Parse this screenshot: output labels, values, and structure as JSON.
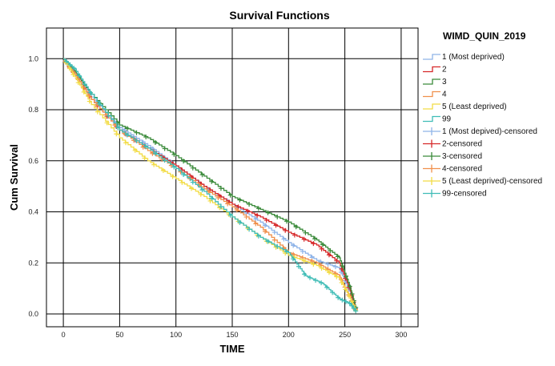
{
  "chart_data": {
    "type": "line",
    "title": "Survival Functions",
    "xlabel": "TIME",
    "ylabel": "Cum Survival",
    "xlim": [
      -15,
      315
    ],
    "ylim": [
      -0.05,
      1.12
    ],
    "x_ticks": [
      0,
      50,
      100,
      150,
      200,
      250,
      300
    ],
    "x_tick_labels": [
      "0",
      "50",
      "100",
      "150",
      "200",
      "250",
      "300"
    ],
    "y_ticks": [
      0.0,
      0.2,
      0.4,
      0.6,
      0.8,
      1.0
    ],
    "y_tick_labels": [
      "0.0",
      "0.2",
      "0.4",
      "0.6",
      "0.8",
      "1.0"
    ],
    "grid": true,
    "legend_title": "WIMD_QUIN_2019",
    "legend_position": "right",
    "series": [
      {
        "name": "1 (Most deprived)",
        "color": "#8fb4e8",
        "x": [
          0,
          10,
          25,
          50,
          75,
          100,
          125,
          150,
          175,
          200,
          225,
          245,
          255,
          260
        ],
        "y": [
          1.0,
          0.95,
          0.85,
          0.73,
          0.66,
          0.58,
          0.5,
          0.43,
          0.36,
          0.28,
          0.21,
          0.18,
          0.08,
          0.01
        ]
      },
      {
        "name": "2",
        "color": "#d62728",
        "x": [
          0,
          10,
          25,
          50,
          75,
          100,
          125,
          150,
          175,
          200,
          225,
          245,
          255,
          260
        ],
        "y": [
          1.0,
          0.94,
          0.84,
          0.72,
          0.65,
          0.58,
          0.5,
          0.43,
          0.38,
          0.32,
          0.27,
          0.2,
          0.09,
          0.01
        ]
      },
      {
        "name": "3",
        "color": "#3a8a3a",
        "x": [
          0,
          10,
          25,
          50,
          75,
          100,
          125,
          150,
          175,
          200,
          225,
          245,
          255,
          260
        ],
        "y": [
          1.0,
          0.95,
          0.86,
          0.74,
          0.69,
          0.62,
          0.54,
          0.46,
          0.41,
          0.36,
          0.29,
          0.22,
          0.1,
          0.02
        ]
      },
      {
        "name": "4",
        "color": "#f0904c",
        "x": [
          0,
          10,
          25,
          50,
          75,
          100,
          125,
          150,
          175,
          200,
          225,
          245,
          255,
          260
        ],
        "y": [
          1.0,
          0.94,
          0.84,
          0.72,
          0.64,
          0.57,
          0.49,
          0.42,
          0.34,
          0.24,
          0.2,
          0.15,
          0.06,
          0.01
        ]
      },
      {
        "name": "5 (Least deprived)",
        "color": "#f2dc45",
        "x": [
          0,
          10,
          25,
          50,
          75,
          100,
          125,
          150,
          175,
          200,
          225,
          245,
          255,
          260
        ],
        "y": [
          1.0,
          0.93,
          0.82,
          0.69,
          0.6,
          0.53,
          0.46,
          0.38,
          0.3,
          0.23,
          0.19,
          0.14,
          0.06,
          0.01
        ]
      },
      {
        "name": "99",
        "color": "#3fbcb6",
        "x": [
          0,
          10,
          25,
          50,
          75,
          100,
          125,
          150,
          175,
          200,
          215,
          230,
          245,
          255,
          260
        ],
        "y": [
          1.0,
          0.96,
          0.86,
          0.72,
          0.65,
          0.57,
          0.48,
          0.38,
          0.3,
          0.24,
          0.15,
          0.12,
          0.06,
          0.04,
          0.01
        ]
      }
    ],
    "censored_legend": [
      {
        "name": "1 (Most depived)-censored",
        "color": "#8fb4e8"
      },
      {
        "name": "2-censored",
        "color": "#d62728"
      },
      {
        "name": "3-censored",
        "color": "#3a8a3a"
      },
      {
        "name": "4-censored",
        "color": "#f0904c"
      },
      {
        "name": "5 (Least deprived)-censored",
        "color": "#f2dc45"
      },
      {
        "name": "99-censored",
        "color": "#3fbcb6"
      }
    ]
  }
}
